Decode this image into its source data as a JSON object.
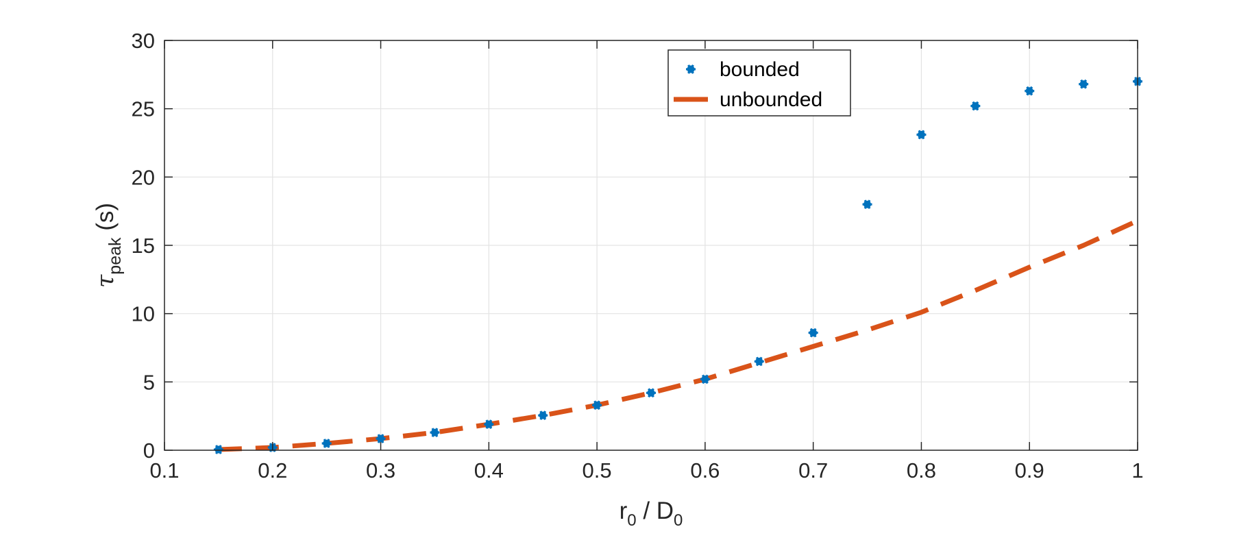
{
  "chart_data": {
    "type": "scatter",
    "title": "",
    "xlabel": {
      "main": "r",
      "sub": "0",
      "mid": " / D",
      "sub2": "0"
    },
    "ylabel": {
      "symbol": "τ",
      "sub": "peak",
      "unit": " (s)"
    },
    "xlim": [
      0.1,
      1.0
    ],
    "ylim": [
      0,
      30
    ],
    "xticks": [
      0.1,
      0.2,
      0.3,
      0.4,
      0.5,
      0.6,
      0.7,
      0.8,
      0.9,
      1.0
    ],
    "xtick_labels": [
      "0.1",
      "0.2",
      "0.3",
      "0.4",
      "0.5",
      "0.6",
      "0.7",
      "0.8",
      "0.9",
      "1"
    ],
    "yticks": [
      0,
      5,
      10,
      15,
      20,
      25,
      30
    ],
    "ytick_labels": [
      "0",
      "5",
      "10",
      "15",
      "20",
      "25",
      "30"
    ],
    "grid": true,
    "legend_position": "top-center",
    "series": [
      {
        "name": "bounded",
        "style": "markers",
        "marker": "asterisk",
        "color": "#0072BD",
        "x": [
          0.15,
          0.2,
          0.25,
          0.3,
          0.35,
          0.4,
          0.45,
          0.5,
          0.55,
          0.6,
          0.65,
          0.7,
          0.75,
          0.8,
          0.85,
          0.9,
          0.95,
          1.0
        ],
        "y": [
          0.05,
          0.2,
          0.5,
          0.85,
          1.3,
          1.9,
          2.55,
          3.3,
          4.2,
          5.2,
          6.5,
          8.6,
          18.0,
          23.1,
          25.2,
          26.3,
          26.8,
          27.0
        ]
      },
      {
        "name": "unbounded",
        "style": "dashed-line",
        "color": "#D95319",
        "x": [
          0.15,
          0.2,
          0.25,
          0.3,
          0.35,
          0.4,
          0.45,
          0.5,
          0.55,
          0.6,
          0.65,
          0.7,
          0.75,
          0.8,
          0.85,
          0.9,
          0.95,
          1.0
        ],
        "y": [
          0.05,
          0.2,
          0.5,
          0.85,
          1.3,
          1.9,
          2.55,
          3.3,
          4.2,
          5.2,
          6.4,
          7.6,
          8.8,
          10.1,
          11.7,
          13.4,
          15.0,
          16.8
        ]
      }
    ]
  }
}
